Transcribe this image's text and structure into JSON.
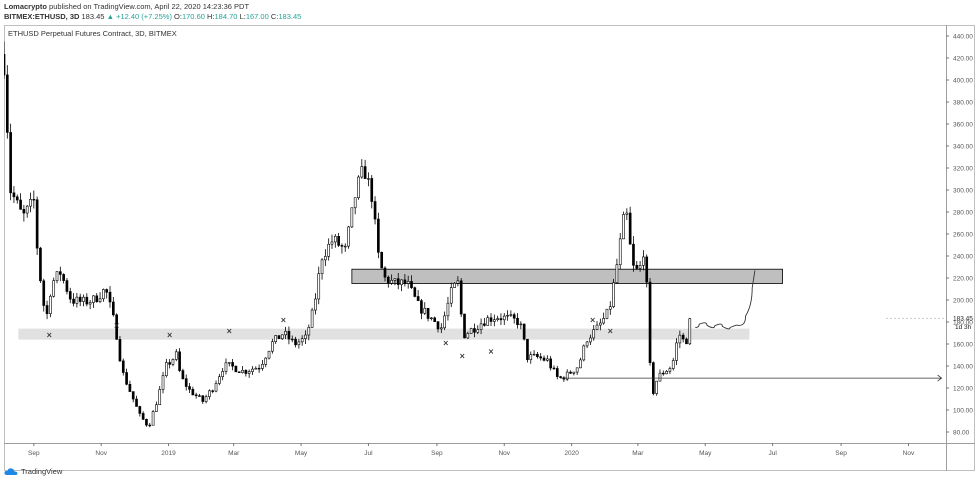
{
  "header": {
    "author": "Lomacrypto",
    "published_text": "published on TradingView.com, April 22, 2020 14:23:36 PDT",
    "symbol": "BITMEX:ETHUSD, 3D",
    "last": "183.45",
    "change": "▲ +12.40 (+7.25%)",
    "o_label": "O:",
    "o_value": "170.60",
    "h_label": "H:",
    "h_value": "184.70",
    "l_label": "L:",
    "l_value": "167.00",
    "c_label": "C:",
    "c_value": "183.45"
  },
  "footer": {
    "brand": "TradingView"
  },
  "colors": {
    "up": "#ffffff",
    "down": "#000000",
    "wick": "#000000",
    "zone_light": "#dcdcdc",
    "zone_dark": "#b4b4b4",
    "axis_text": "#555555"
  },
  "chart_data": {
    "type": "candlestick",
    "title": "ETHUSD Perpetual Futures Contract, 3D, BITMEX",
    "y_ticks": [
      80,
      100,
      120,
      140,
      160,
      180,
      200,
      220,
      240,
      260,
      280,
      300,
      320,
      340,
      360,
      380,
      400,
      420,
      440
    ],
    "y_tick_labels": [
      "80.00",
      "100.00",
      "120.00",
      "140.00",
      "160.00",
      "180.00",
      "200.00",
      "220.00",
      "240.00",
      "260.00",
      "280.00",
      "300.00",
      "320.00",
      "340.00",
      "360.00",
      "380.00",
      "400.00",
      "420.00",
      "440.00"
    ],
    "ylim": [
      70,
      450
    ],
    "price_label": "183.45",
    "countdown_label": "1d 3h",
    "x_tick_labels": [
      "Sep",
      "Nov",
      "2019",
      "Mar",
      "May",
      "Jul",
      "Sep",
      "Nov",
      "2020",
      "Mar",
      "May",
      "Jul",
      "Sep",
      "Nov"
    ],
    "x_ticks": [
      "2018-09-01",
      "2018-11-01",
      "2019-01-01",
      "2019-03-01",
      "2019-05-01",
      "2019-07-01",
      "2019-09-01",
      "2019-11-01",
      "2020-01-01",
      "2020-03-01",
      "2020-05-01",
      "2020-07-01",
      "2020-09-01",
      "2020-11-01"
    ],
    "xlim": [
      "2018-08-05",
      "2020-12-05"
    ],
    "candle_period_days": 3,
    "close_path": [
      [
        "2018-08-05",
        415
      ],
      [
        "2018-08-11",
        300
      ],
      [
        "2018-08-22",
        275
      ],
      [
        "2018-09-01",
        290
      ],
      [
        "2018-09-05",
        235
      ],
      [
        "2018-09-12",
        180
      ],
      [
        "2018-09-17",
        215
      ],
      [
        "2018-09-25",
        225
      ],
      [
        "2018-10-05",
        200
      ],
      [
        "2018-10-15",
        198
      ],
      [
        "2018-10-25",
        200
      ],
      [
        "2018-11-05",
        210
      ],
      [
        "2018-11-14",
        175
      ],
      [
        "2018-11-20",
        135
      ],
      [
        "2018-11-28",
        115
      ],
      [
        "2018-12-06",
        95
      ],
      [
        "2018-12-14",
        85
      ],
      [
        "2018-12-22",
        110
      ],
      [
        "2018-12-30",
        140
      ],
      [
        "2019-01-08",
        150
      ],
      [
        "2019-01-12",
        130
      ],
      [
        "2019-01-20",
        118
      ],
      [
        "2019-02-01",
        108
      ],
      [
        "2019-02-10",
        120
      ],
      [
        "2019-02-20",
        140
      ],
      [
        "2019-02-26",
        140
      ],
      [
        "2019-03-10",
        135
      ],
      [
        "2019-03-25",
        140
      ],
      [
        "2019-04-04",
        160
      ],
      [
        "2019-04-15",
        170
      ],
      [
        "2019-04-25",
        160
      ],
      [
        "2019-05-05",
        165
      ],
      [
        "2019-05-12",
        190
      ],
      [
        "2019-05-20",
        240
      ],
      [
        "2019-05-30",
        255
      ],
      [
        "2019-06-10",
        245
      ],
      [
        "2019-06-20",
        300
      ],
      [
        "2019-06-27",
        320
      ],
      [
        "2019-07-04",
        295
      ],
      [
        "2019-07-10",
        240
      ],
      [
        "2019-07-15",
        220
      ],
      [
        "2019-07-25",
        215
      ],
      [
        "2019-08-05",
        215
      ],
      [
        "2019-08-15",
        195
      ],
      [
        "2019-08-25",
        185
      ],
      [
        "2019-09-05",
        175
      ],
      [
        "2019-09-15",
        210
      ],
      [
        "2019-09-20",
        215
      ],
      [
        "2019-09-25",
        168
      ],
      [
        "2019-10-05",
        175
      ],
      [
        "2019-10-15",
        182
      ],
      [
        "2019-10-25",
        185
      ],
      [
        "2019-11-05",
        183
      ],
      [
        "2019-11-15",
        180
      ],
      [
        "2019-11-22",
        148
      ],
      [
        "2019-12-01",
        148
      ],
      [
        "2019-12-10",
        145
      ],
      [
        "2019-12-20",
        128
      ],
      [
        "2019-12-28",
        132
      ],
      [
        "2020-01-07",
        140
      ],
      [
        "2020-01-15",
        165
      ],
      [
        "2020-01-25",
        175
      ],
      [
        "2020-02-04",
        190
      ],
      [
        "2020-02-10",
        225
      ],
      [
        "2020-02-16",
        265
      ],
      [
        "2020-02-19",
        285
      ],
      [
        "2020-02-25",
        230
      ],
      [
        "2020-03-02",
        225
      ],
      [
        "2020-03-06",
        245
      ],
      [
        "2020-03-10",
        200
      ],
      [
        "2020-03-13",
        110
      ],
      [
        "2020-03-19",
        130
      ],
      [
        "2020-03-25",
        135
      ],
      [
        "2020-04-01",
        140
      ],
      [
        "2020-04-07",
        170
      ],
      [
        "2020-04-13",
        160
      ],
      [
        "2020-04-19",
        183
      ]
    ],
    "zones": [
      {
        "from": "2018-08-18",
        "to": "2020-06-10",
        "low": 164,
        "high": 174,
        "shade": "light"
      },
      {
        "from": "2019-06-16",
        "to": "2020-07-10",
        "low": 215,
        "high": 228,
        "shade": "dark"
      }
    ],
    "x_markers": [
      [
        "2018-09-15",
        168
      ],
      [
        "2018-11-15",
        177
      ],
      [
        "2019-01-02",
        168
      ],
      [
        "2019-02-25",
        172
      ],
      [
        "2019-04-15",
        182
      ],
      [
        "2019-09-09",
        161
      ],
      [
        "2019-09-24",
        149
      ],
      [
        "2019-10-20",
        153
      ],
      [
        "2020-01-20",
        182
      ],
      [
        "2020-02-05",
        172
      ]
    ],
    "horizontal_line": {
      "from": "2019-12-22",
      "to": "2020-12-01",
      "value": 129
    },
    "projection_path": [
      [
        "2020-04-22",
        175
      ],
      [
        "2020-04-29",
        181
      ],
      [
        "2020-05-06",
        173
      ],
      [
        "2020-05-13",
        180
      ],
      [
        "2020-05-20",
        172
      ],
      [
        "2020-05-27",
        178
      ],
      [
        "2020-06-03",
        176
      ],
      [
        "2020-06-10",
        195
      ],
      [
        "2020-06-15",
        227
      ]
    ]
  }
}
